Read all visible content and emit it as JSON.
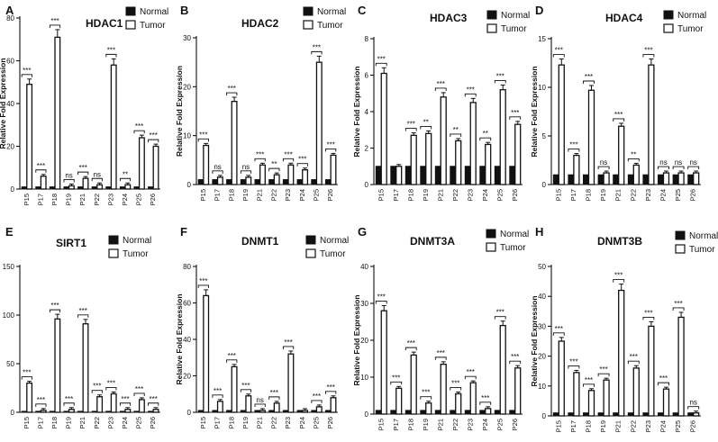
{
  "chart_data": [
    {
      "panel": "A",
      "type": "bar",
      "title": "HDAC1",
      "ylabel": "Relative Fold Expression",
      "ylim": [
        0,
        80
      ],
      "ticks": [
        0,
        20,
        40,
        60,
        80
      ],
      "categories": [
        "P15",
        "P17",
        "P18",
        "P19",
        "P21",
        "P22",
        "P23",
        "P24",
        "P25",
        "P26"
      ],
      "series": [
        {
          "name": "Normal",
          "values": [
            1,
            1,
            1,
            1,
            1,
            1,
            1,
            1,
            1,
            1
          ]
        },
        {
          "name": "Tumor",
          "values": [
            49,
            6,
            71,
            1.5,
            5,
            2,
            58,
            2,
            24,
            20
          ]
        }
      ],
      "significance": [
        "***",
        "***",
        "***",
        "ns",
        "***",
        "ns",
        "***",
        "**",
        "***",
        "***"
      ],
      "legend": [
        "Normal",
        "Tumor"
      ]
    },
    {
      "panel": "B",
      "type": "bar",
      "title": "HDAC2",
      "ylabel": "Relative Fold Expression",
      "ylim": [
        0,
        30
      ],
      "ticks": [
        0,
        10,
        20,
        30
      ],
      "categories": [
        "P15",
        "P17",
        "P18",
        "P19",
        "P21",
        "P22",
        "P23",
        "P24",
        "P25",
        "P26"
      ],
      "series": [
        {
          "name": "Normal",
          "values": [
            1,
            1,
            1,
            1,
            1,
            1,
            1,
            1,
            1,
            1
          ]
        },
        {
          "name": "Tumor",
          "values": [
            8,
            1.5,
            17,
            1.5,
            4,
            2,
            4,
            3,
            25,
            6
          ]
        }
      ],
      "significance": [
        "***",
        "ns",
        "***",
        "ns",
        "***",
        "**",
        "***",
        "***",
        "***",
        "***"
      ],
      "legend": [
        "Normal",
        "Tumor"
      ]
    },
    {
      "panel": "C",
      "type": "bar",
      "title": "HDAC3",
      "ylabel": "Relative Fold Expression",
      "ylim": [
        0,
        8
      ],
      "ticks": [
        0,
        2,
        4,
        6,
        8
      ],
      "categories": [
        "P15",
        "P17",
        "P18",
        "P19",
        "P21",
        "P22",
        "P23",
        "P24",
        "P25",
        "P26"
      ],
      "series": [
        {
          "name": "Normal",
          "values": [
            1,
            1,
            1,
            1,
            1,
            1,
            1,
            1,
            1,
            1
          ]
        },
        {
          "name": "Tumor",
          "values": [
            6.1,
            1,
            2.7,
            2.8,
            4.8,
            2.4,
            4.5,
            2.2,
            5.2,
            3.3
          ]
        }
      ],
      "significance": [
        "***",
        "",
        "***",
        "**",
        "***",
        "**",
        "***",
        "**",
        "***",
        "***"
      ],
      "legend": [
        "Normal",
        "Tumor"
      ]
    },
    {
      "panel": "D",
      "type": "bar",
      "title": "HDAC4",
      "ylabel": "Relative Fold Expression",
      "ylim": [
        0,
        15
      ],
      "ticks": [
        0,
        5,
        10,
        15
      ],
      "categories": [
        "P15",
        "P17",
        "P18",
        "P19",
        "P21",
        "P22",
        "P23",
        "P24",
        "P25",
        "P26"
      ],
      "series": [
        {
          "name": "Normal",
          "values": [
            1,
            1,
            1,
            1,
            1,
            1,
            1,
            1,
            1,
            1
          ]
        },
        {
          "name": "Tumor",
          "values": [
            12.3,
            3,
            9.7,
            1.2,
            6,
            2,
            12.3,
            1.2,
            1.2,
            1.2
          ]
        }
      ],
      "significance": [
        "***",
        "***",
        "***",
        "ns",
        "***",
        "**",
        "***",
        "ns",
        "ns",
        "ns"
      ],
      "legend": [
        "Normal",
        "Tumor"
      ]
    },
    {
      "panel": "E",
      "type": "bar",
      "title": "SIRT1",
      "ylabel": "",
      "ylim": [
        0,
        150
      ],
      "ticks": [
        0,
        50,
        100,
        150
      ],
      "categories": [
        "P15",
        "P17",
        "P18",
        "P19",
        "P21",
        "P22",
        "P23",
        "P24",
        "P25",
        "P26"
      ],
      "series": [
        {
          "name": "Normal",
          "values": [
            1,
            1,
            1,
            1,
            1,
            1,
            1,
            1,
            1,
            1
          ]
        },
        {
          "name": "Tumor",
          "values": [
            30,
            2,
            96,
            3,
            91,
            16,
            19,
            3,
            13,
            3
          ]
        }
      ],
      "significance": [
        "***",
        "***",
        "***",
        "***",
        "***",
        "***",
        "***",
        "***",
        "***",
        "***"
      ],
      "legend": [
        "Normal",
        "Tumor"
      ]
    },
    {
      "panel": "F",
      "type": "bar",
      "title": "DNMT1",
      "ylabel": "Relative Fold Expression",
      "ylim": [
        0,
        80
      ],
      "ticks": [
        0,
        20,
        40,
        60,
        80
      ],
      "categories": [
        "P15",
        "P17",
        "P18",
        "P19",
        "P21",
        "P22",
        "P23",
        "P24",
        "P25",
        "P26"
      ],
      "series": [
        {
          "name": "Normal",
          "values": [
            1,
            1,
            1,
            1,
            1,
            1,
            1,
            1,
            1,
            1
          ]
        },
        {
          "name": "Tumor",
          "values": [
            64,
            6,
            25,
            9,
            1,
            5,
            32,
            1,
            3,
            8
          ]
        }
      ],
      "significance": [
        "***",
        "***",
        "***",
        "***",
        "ns",
        "***",
        "***",
        "",
        "***",
        "***"
      ],
      "legend": [
        "Normal",
        "Tumor"
      ]
    },
    {
      "panel": "G",
      "type": "bar",
      "title": "DNMT3A",
      "ylabel": "Relative Fold Expression",
      "ylim": [
        0,
        40
      ],
      "ticks": [
        0,
        10,
        20,
        30,
        40
      ],
      "categories": [
        "P15",
        "P17",
        "P18",
        "P19",
        "P21",
        "P22",
        "P23",
        "P24",
        "P25",
        "P26"
      ],
      "series": [
        {
          "name": "Normal",
          "values": [
            1,
            1,
            1,
            1,
            1,
            1,
            1,
            1,
            1,
            1
          ]
        },
        {
          "name": "Tumor",
          "values": [
            28,
            7,
            16,
            3,
            13.5,
            5.5,
            8.5,
            1.5,
            24,
            12.5
          ]
        }
      ],
      "significance": [
        "***",
        "***",
        "***",
        "***",
        "***",
        "***",
        "***",
        "***",
        "***",
        "***"
      ],
      "legend": [
        "Normal",
        "Tumor"
      ]
    },
    {
      "panel": "H",
      "type": "bar",
      "title": "DNMT3B",
      "ylabel": "Relative Fold Expression",
      "ylim": [
        0,
        50
      ],
      "ticks": [
        0,
        10,
        20,
        30,
        40,
        50
      ],
      "categories": [
        "P15",
        "P17",
        "P18",
        "P19",
        "P21",
        "P22",
        "P23",
        "P24",
        "P25",
        "P26"
      ],
      "series": [
        {
          "name": "Normal",
          "values": [
            1,
            1,
            1,
            1,
            1,
            1,
            1,
            1,
            1,
            1
          ]
        },
        {
          "name": "Tumor",
          "values": [
            25,
            14.5,
            8.5,
            12,
            42,
            16,
            30,
            9,
            33,
            1
          ]
        }
      ],
      "significance": [
        "***",
        "***",
        "***",
        "***",
        "***",
        "***",
        "***",
        "***",
        "***",
        "ns"
      ],
      "legend": [
        "Normal",
        "Tumor"
      ]
    }
  ]
}
